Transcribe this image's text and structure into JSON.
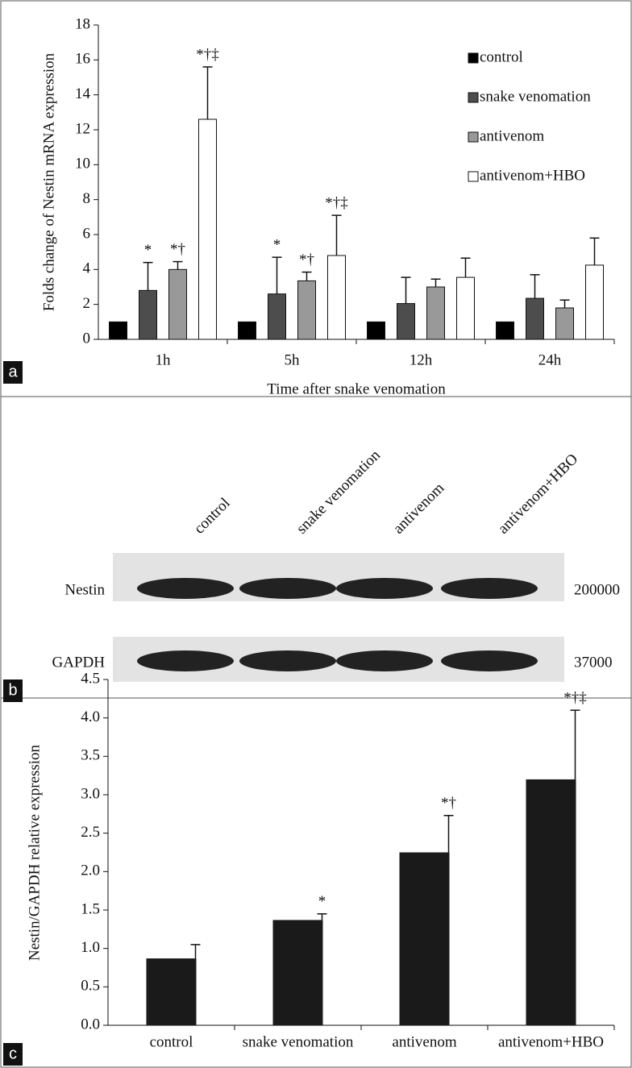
{
  "chart_data": [
    {
      "type": "bar",
      "panel_label": "a",
      "y_label": "Folds change of Nestin mRNA expression",
      "x_label": "Time after snake venomation",
      "categories": [
        "1h",
        "5h",
        "12h",
        "24h"
      ],
      "ylim": [
        0,
        18
      ],
      "yticks": [
        0,
        2,
        4,
        6,
        8,
        10,
        12,
        14,
        16,
        18
      ],
      "legend": "top-right",
      "series": [
        {
          "name": "control",
          "color": "#000000",
          "values": [
            1,
            1,
            1,
            1
          ]
        },
        {
          "name": "snake venomation",
          "color": "#4d4d4d",
          "values": [
            2.8,
            2.6,
            2.05,
            2.35
          ],
          "errors": [
            1.6,
            2.1,
            1.5,
            1.35
          ],
          "annotations": [
            "*",
            "*",
            null,
            null
          ]
        },
        {
          "name": "antivenom",
          "color": "#999999",
          "values": [
            4.0,
            3.35,
            3.0,
            1.8
          ],
          "errors": [
            0.45,
            0.5,
            0.45,
            0.45
          ],
          "annotations": [
            "*†",
            "*†",
            null,
            null
          ]
        },
        {
          "name": "antivenom+HBO",
          "color": "#ffffff",
          "values": [
            12.6,
            4.8,
            3.55,
            4.25
          ],
          "errors": [
            3.0,
            2.3,
            1.1,
            1.55
          ],
          "annotations": [
            "*†‡",
            "*†‡",
            null,
            null
          ]
        }
      ]
    },
    {
      "type": "bar",
      "panel_label": "c",
      "y_label": "Nestin/GAPDH relative expression",
      "categories": [
        "control",
        "snake venomation",
        "antivenom",
        "antivenom+HBO"
      ],
      "values": [
        0.87,
        1.37,
        2.25,
        3.2
      ],
      "errors": [
        0.18,
        0.08,
        0.48,
        0.9
      ],
      "annotations": [
        null,
        "*",
        "*†",
        "*†‡"
      ],
      "color": "#1a1a1a",
      "ylim": [
        0,
        4.5
      ],
      "yticks": [
        {
          "value": 0,
          "label": "0.0"
        },
        0.5,
        {
          "value": 1,
          "label": "1.0"
        },
        1.5,
        {
          "value": 2,
          "label": "2.0"
        },
        2.5,
        {
          "value": 3,
          "label": "3.0"
        },
        3.5,
        {
          "value": 4,
          "label": "4.0"
        },
        4.5
      ]
    }
  ],
  "blot": {
    "panel_label": "b",
    "lanes": [
      "control",
      "snake venomation",
      "antivenom",
      "antivenom+HBO"
    ],
    "rows": [
      {
        "protein": "Nestin",
        "size": 200000
      },
      {
        "protein": "GAPDH",
        "size": 37000
      }
    ]
  }
}
